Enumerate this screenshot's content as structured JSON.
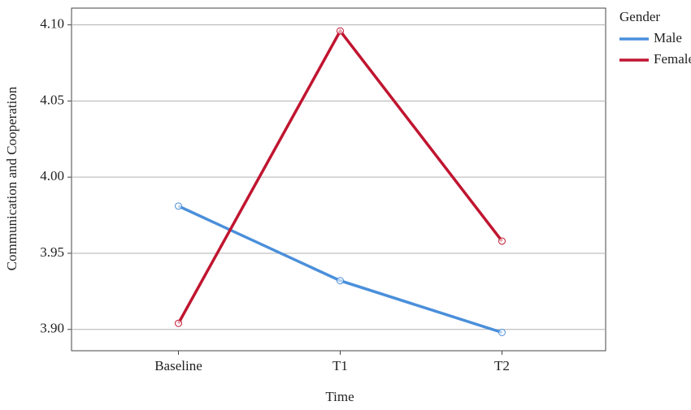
{
  "chart_data": {
    "type": "line",
    "x_label": "Time",
    "y_label": "Communication and Cooperation",
    "legend_title": "Gender",
    "legend": "right",
    "categories": [
      "Baseline",
      "T1",
      "T2"
    ],
    "series": [
      {
        "name": "Male",
        "color": "#4a8fdb",
        "values": [
          3.981,
          3.932,
          3.898
        ]
      },
      {
        "name": "Female",
        "color": "#c01530",
        "values": [
          3.904,
          4.096,
          3.958
        ]
      }
    ],
    "ylim": [
      3.886,
      4.111
    ],
    "yticks": [
      {
        "value": 3.9,
        "label": "3.90"
      },
      3.95,
      {
        "value": 4.0,
        "label": "4.00"
      },
      4.05,
      {
        "value": 4.1,
        "label": "4.10"
      }
    ],
    "grid": true
  }
}
